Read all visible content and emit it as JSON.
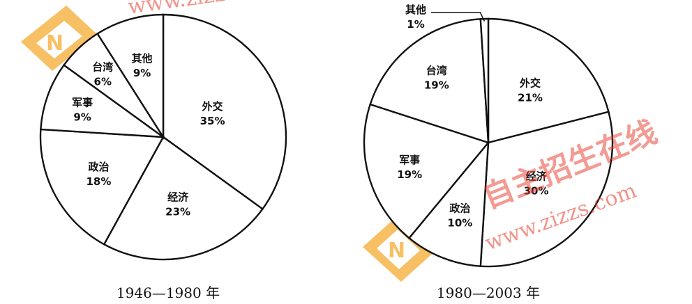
{
  "chart_data": [
    {
      "type": "pie",
      "title": "",
      "caption": "1946—1980 年",
      "categories": [
        "外交",
        "经济",
        "政治",
        "军事",
        "台湾",
        "其他"
      ],
      "values": [
        35,
        23,
        18,
        9,
        6,
        9
      ],
      "value_labels": [
        "35%",
        "23%",
        "18%",
        "9%",
        "6%",
        "9%"
      ],
      "legend": "none"
    },
    {
      "type": "pie",
      "title": "",
      "caption": "1980—2003 年",
      "categories": [
        "外交",
        "经济",
        "政治",
        "军事",
        "台湾",
        "其他"
      ],
      "values": [
        21,
        30,
        10,
        19,
        19,
        1
      ],
      "value_labels": [
        "21%",
        "30%",
        "10%",
        "19%",
        "19%",
        "1%"
      ],
      "legend": "none"
    }
  ],
  "watermark": {
    "url_text": "www.zizzs.com",
    "brand_text": "自主招生在线",
    "logo_letter": "N",
    "logo_color": "#f5a623",
    "text_color": "#e83a2a"
  }
}
